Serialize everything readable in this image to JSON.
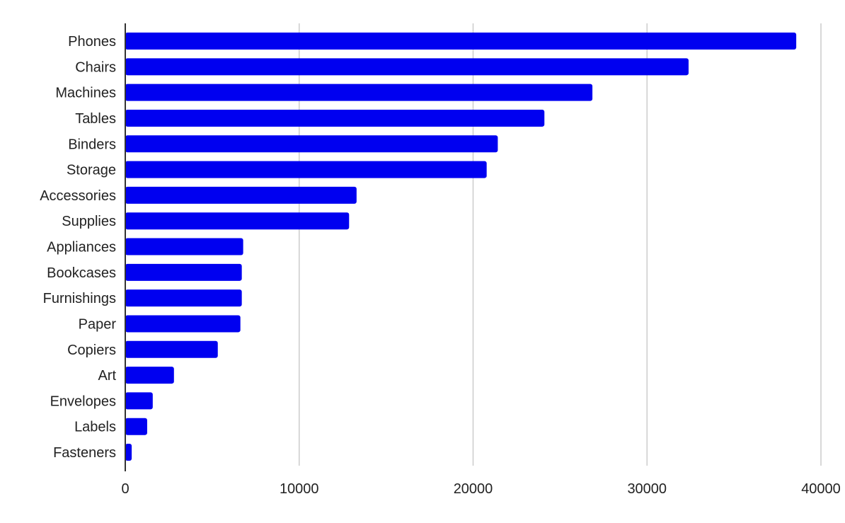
{
  "chart_data": {
    "type": "bar",
    "orientation": "horizontal",
    "title": "",
    "xlabel": "",
    "ylabel": "",
    "categories": [
      "Phones",
      "Chairs",
      "Machines",
      "Tables",
      "Binders",
      "Storage",
      "Accessories",
      "Supplies",
      "Appliances",
      "Bookcases",
      "Furnishings",
      "Paper",
      "Copiers",
      "Art",
      "Envelopes",
      "Labels",
      "Fasteners"
    ],
    "values": [
      38580,
      32390,
      26860,
      24100,
      21420,
      20780,
      13300,
      12870,
      6780,
      6700,
      6700,
      6620,
      5320,
      2800,
      1580,
      1260,
      370
    ],
    "xlim": [
      0,
      40000
    ],
    "xticks": [
      "0",
      "10000",
      "20000",
      "30000",
      "40000"
    ],
    "grid": true,
    "legend": "none",
    "bar_color": "#0000f0",
    "grid_color": "#cccccc"
  }
}
